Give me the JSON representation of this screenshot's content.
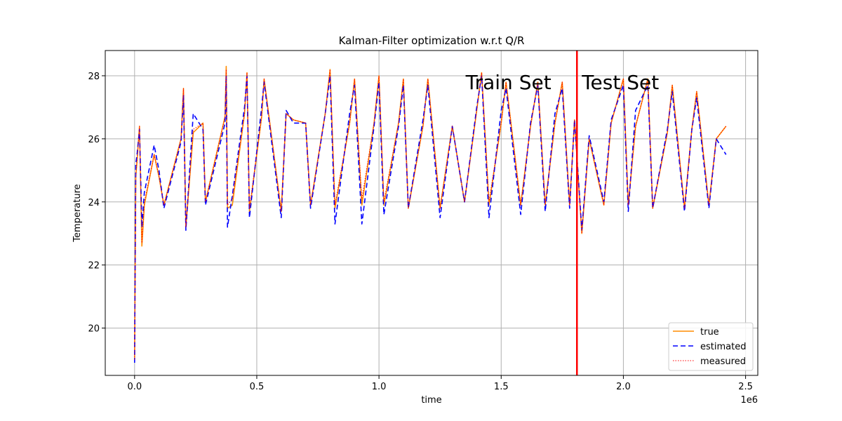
{
  "chart_data": {
    "type": "line",
    "title": "Kalman-Filter optimization w.r.t Q/R",
    "xlabel": "time",
    "ylabel": "Temperature",
    "x_offset_label": "1e6",
    "xlim": [
      -0.12,
      2.55
    ],
    "ylim": [
      18.5,
      28.8
    ],
    "grid": true,
    "x_ticks": [
      0.0,
      0.5,
      1.0,
      1.5,
      2.0,
      2.5
    ],
    "x_tick_labels": [
      "0.0",
      "0.5",
      "1.0",
      "1.5",
      "2.0",
      "2.5"
    ],
    "y_ticks": [
      20,
      22,
      24,
      26,
      28
    ],
    "y_tick_labels": [
      "20",
      "22",
      "24",
      "26",
      "28"
    ],
    "legend_position": "bottom-right",
    "split_line": {
      "x": 1.81,
      "color": "#ff0000"
    },
    "annotations": [
      {
        "text": "Train Set",
        "x": 1.705,
        "y": 27.8,
        "anchor": "end"
      },
      {
        "text": "Test Set",
        "x": 1.83,
        "y": 27.8,
        "anchor": "start"
      }
    ],
    "series": [
      {
        "name": "true",
        "color": "#ff8c00",
        "style": "solid",
        "x": [
          0.0,
          0.005,
          0.01,
          0.02,
          0.03,
          0.04,
          0.08,
          0.1,
          0.12,
          0.19,
          0.2,
          0.21,
          0.24,
          0.28,
          0.29,
          0.37,
          0.375,
          0.38,
          0.4,
          0.45,
          0.46,
          0.47,
          0.52,
          0.53,
          0.6,
          0.62,
          0.65,
          0.7,
          0.72,
          0.78,
          0.8,
          0.82,
          0.88,
          0.9,
          0.93,
          0.98,
          1.0,
          1.02,
          1.08,
          1.1,
          1.12,
          1.18,
          1.2,
          1.25,
          1.3,
          1.35,
          1.4,
          1.42,
          1.45,
          1.5,
          1.52,
          1.58,
          1.62,
          1.65,
          1.68,
          1.72,
          1.75,
          1.78,
          1.8,
          1.83,
          1.86,
          1.92,
          1.95,
          2.0,
          2.02,
          2.05,
          2.1,
          2.12,
          2.18,
          2.2,
          2.25,
          2.28,
          2.3,
          2.35,
          2.38,
          2.42
        ],
        "values": [
          19.0,
          24.8,
          25.3,
          26.4,
          22.6,
          23.9,
          25.5,
          24.8,
          23.9,
          26.0,
          27.6,
          23.2,
          26.2,
          26.5,
          24.0,
          26.7,
          28.3,
          23.8,
          23.9,
          26.8,
          28.1,
          23.7,
          26.7,
          27.9,
          23.7,
          26.8,
          26.6,
          26.5,
          23.9,
          26.8,
          28.2,
          23.8,
          26.5,
          27.9,
          23.9,
          26.5,
          28.0,
          23.9,
          26.5,
          27.9,
          23.8,
          26.4,
          27.9,
          23.8,
          26.4,
          24.0,
          26.9,
          28.1,
          23.9,
          26.5,
          27.8,
          23.9,
          26.4,
          27.8,
          23.9,
          26.5,
          27.8,
          23.9,
          26.6,
          23.0,
          26.0,
          23.9,
          26.5,
          27.9,
          23.9,
          26.4,
          27.9,
          23.8,
          26.2,
          27.7,
          23.8,
          26.3,
          27.5,
          23.9,
          26.0,
          26.4
        ]
      },
      {
        "name": "estimated",
        "color": "#0000ff",
        "style": "dashed",
        "x": [
          0.0,
          0.005,
          0.01,
          0.02,
          0.03,
          0.04,
          0.08,
          0.1,
          0.12,
          0.19,
          0.2,
          0.21,
          0.24,
          0.28,
          0.29,
          0.37,
          0.375,
          0.38,
          0.4,
          0.45,
          0.46,
          0.47,
          0.52,
          0.53,
          0.6,
          0.62,
          0.65,
          0.7,
          0.72,
          0.78,
          0.8,
          0.82,
          0.88,
          0.9,
          0.93,
          0.98,
          1.0,
          1.02,
          1.08,
          1.1,
          1.12,
          1.18,
          1.2,
          1.25,
          1.3,
          1.35,
          1.4,
          1.42,
          1.45,
          1.5,
          1.52,
          1.58,
          1.62,
          1.65,
          1.68,
          1.72,
          1.75,
          1.78,
          1.8,
          1.83,
          1.86,
          1.92,
          1.95,
          2.0,
          2.02,
          2.05,
          2.1,
          2.12,
          2.18,
          2.2,
          2.25,
          2.28,
          2.3,
          2.35,
          2.38,
          2.42
        ],
        "values": [
          18.9,
          25.2,
          25.5,
          26.3,
          23.2,
          24.3,
          25.8,
          25.0,
          23.8,
          25.9,
          27.4,
          23.1,
          26.8,
          26.3,
          23.9,
          26.5,
          28.0,
          23.2,
          24.2,
          27.0,
          28.0,
          23.5,
          27.0,
          27.8,
          23.5,
          26.9,
          26.5,
          26.5,
          23.8,
          26.8,
          28.0,
          23.3,
          26.8,
          27.7,
          23.3,
          26.4,
          27.8,
          23.6,
          26.4,
          27.7,
          23.8,
          26.6,
          27.7,
          23.5,
          26.4,
          24.0,
          27.0,
          28.0,
          23.5,
          26.9,
          27.6,
          23.6,
          26.5,
          27.7,
          23.7,
          26.8,
          27.6,
          23.8,
          26.6,
          23.1,
          26.1,
          24.0,
          26.6,
          27.7,
          23.7,
          26.9,
          27.7,
          23.8,
          26.3,
          27.5,
          23.7,
          26.3,
          27.3,
          23.8,
          26.0,
          25.5
        ]
      },
      {
        "name": "measured",
        "color": "#ff0000",
        "style": "dotted",
        "x": [
          0.0,
          0.005,
          0.01,
          0.02,
          0.03,
          0.04,
          0.08,
          0.1,
          0.12,
          0.19,
          0.2,
          0.21,
          0.24,
          0.28,
          0.29,
          0.37,
          0.375,
          0.38,
          0.4,
          0.45,
          0.46,
          0.47,
          0.52,
          0.53,
          0.6,
          0.62,
          0.65,
          0.7,
          0.72,
          0.78,
          0.8,
          0.82,
          0.88,
          0.9,
          0.93,
          0.98,
          1.0,
          1.02,
          1.08,
          1.1,
          1.12,
          1.18,
          1.2,
          1.25,
          1.3,
          1.35,
          1.4,
          1.42,
          1.45,
          1.5,
          1.52,
          1.58,
          1.62,
          1.65,
          1.68,
          1.72,
          1.75,
          1.78,
          1.8,
          1.83,
          1.86,
          1.92,
          1.95,
          2.0,
          2.02,
          2.05,
          2.1,
          2.12,
          2.18,
          2.2,
          2.25,
          2.28,
          2.3,
          2.35,
          2.38,
          2.42
        ],
        "values": [
          19.0,
          24.9,
          25.3,
          26.4,
          22.7,
          24.0,
          25.5,
          24.8,
          23.9,
          26.0,
          27.6,
          23.2,
          26.3,
          26.5,
          24.0,
          26.7,
          28.2,
          23.9,
          24.1,
          26.8,
          28.1,
          23.8,
          26.7,
          27.9,
          23.7,
          26.8,
          26.6,
          26.5,
          23.9,
          26.8,
          28.2,
          23.9,
          26.5,
          27.9,
          24.1,
          26.5,
          28.0,
          24.0,
          26.5,
          27.9,
          23.8,
          26.4,
          27.9,
          23.8,
          26.4,
          24.0,
          26.9,
          28.1,
          24.0,
          26.5,
          27.8,
          23.9,
          26.4,
          27.8,
          23.9,
          26.5,
          27.8,
          23.9,
          26.6,
          23.0,
          26.0,
          23.9,
          26.5,
          27.9,
          23.9,
          26.4,
          27.9,
          23.8,
          26.2,
          27.7,
          23.8,
          26.3,
          27.5,
          23.9,
          26.0,
          26.4
        ]
      }
    ]
  }
}
